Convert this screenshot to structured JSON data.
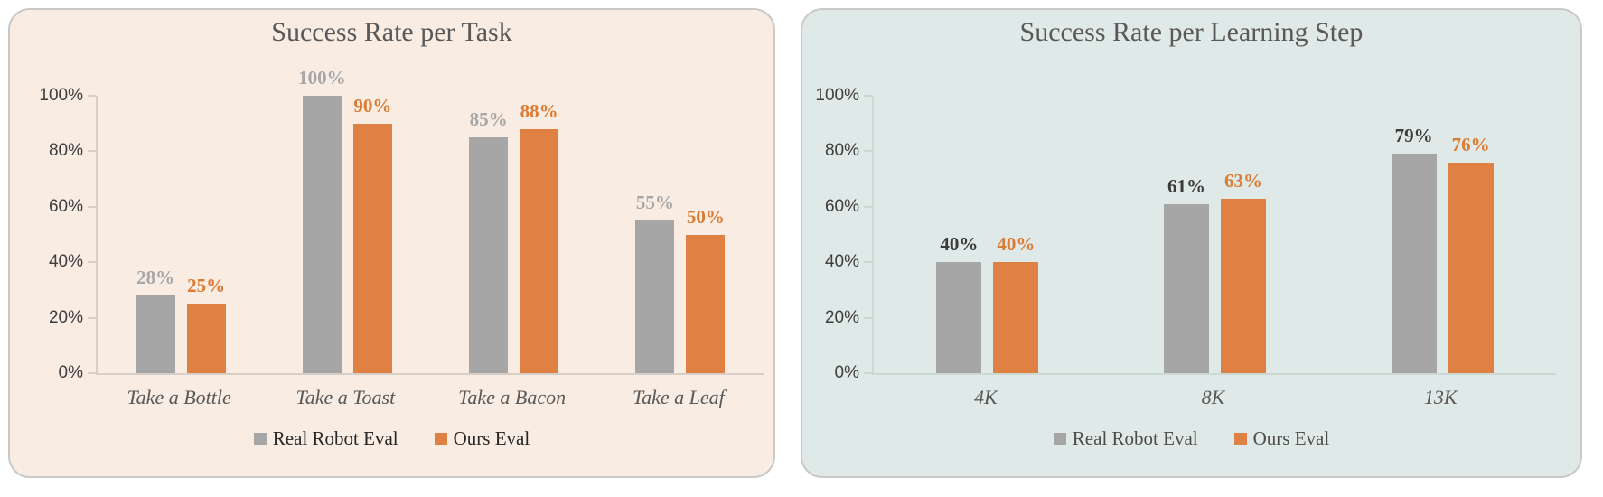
{
  "figure": {
    "background": "#ffffff"
  },
  "chart_data": [
    {
      "type": "bar",
      "title": "Success Rate per Task",
      "xlabel": "",
      "ylabel": "",
      "ylim": [
        0,
        100
      ],
      "grid": false,
      "legend_position": "bottom",
      "panel_background": "#f8ece3",
      "panel_border_color": "#c9c9c9",
      "axis_color": "#d8cec8",
      "title_color": "#595959",
      "tick_label_color": "#3f3f3f",
      "category_color": "#595959",
      "legend_text_color": "#262626",
      "yticks": [
        {
          "value": 0,
          "label": "0%"
        },
        {
          "value": 20,
          "label": "20%"
        },
        {
          "value": 40,
          "label": "40%"
        },
        {
          "value": 60,
          "label": "60%"
        },
        {
          "value": 80,
          "label": "80%"
        },
        {
          "value": 100,
          "label": "100%"
        }
      ],
      "categories": [
        "Take a Bottle",
        "Take a Toast",
        "Take a Bacon",
        "Take a Leaf"
      ],
      "series": [
        {
          "name": "Real Robot Eval",
          "color": "#a6a6a6",
          "label_color": "#a6a6a6",
          "values": [
            28,
            100,
            85,
            55
          ],
          "labels": [
            "28%",
            "100%",
            "85%",
            "55%"
          ]
        },
        {
          "name": "Ours Eval",
          "color": "#de8142",
          "label_color": "#dc7b33",
          "values": [
            25,
            90,
            88,
            50
          ],
          "labels": [
            "25%",
            "90%",
            "88%",
            "50%"
          ]
        }
      ]
    },
    {
      "type": "bar",
      "title": "Success Rate per Learning Step",
      "xlabel": "",
      "ylabel": "",
      "ylim": [
        0,
        100
      ],
      "grid": false,
      "legend_position": "bottom",
      "panel_background": "#dfe9e7",
      "panel_border_color": "#c9c9c9",
      "axis_color": "#cbd8d4",
      "title_color": "#595959",
      "tick_label_color": "#3f3f3f",
      "category_color": "#595959",
      "legend_text_color": "#4c4c4c",
      "yticks": [
        {
          "value": 0,
          "label": "0%"
        },
        {
          "value": 20,
          "label": "20%"
        },
        {
          "value": 40,
          "label": "40%"
        },
        {
          "value": 60,
          "label": "60%"
        },
        {
          "value": 80,
          "label": "80%"
        },
        {
          "value": 100,
          "label": "100%"
        }
      ],
      "categories": [
        "4K",
        "8K",
        "13K"
      ],
      "series": [
        {
          "name": "Real Robot Eval",
          "color": "#a6a6a6",
          "label_color": "#3b3b3b",
          "values": [
            40,
            61,
            79
          ],
          "labels": [
            "40%",
            "61%",
            "79%"
          ]
        },
        {
          "name": "Ours Eval",
          "color": "#de8142",
          "label_color": "#dc7b33",
          "values": [
            40,
            63,
            76
          ],
          "labels": [
            "40%",
            "63%",
            "76%"
          ]
        }
      ]
    }
  ]
}
